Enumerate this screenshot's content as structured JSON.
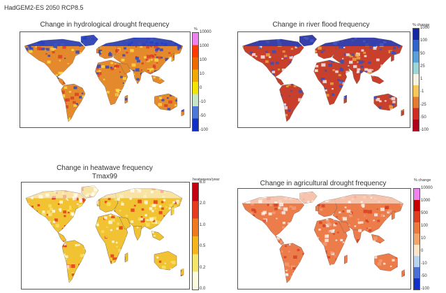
{
  "figure": {
    "suptitle": "HadGEM2-ES 2050 RCP8.5"
  },
  "panels": [
    {
      "id": "hydro",
      "title": "Change in hydrological drought frequency",
      "subtitle": "",
      "unit": "%",
      "ticks": [
        "10000",
        "1000",
        "100",
        "10",
        "0",
        "-10",
        "-50",
        "-100"
      ],
      "colors": [
        "#ee82ee",
        "#ff3b00",
        "#f06a00",
        "#f2a900",
        "#f3e500",
        "#c6e6c8",
        "#4e79d8",
        "#1030c8"
      ],
      "land": "#e58a2c",
      "accent": [
        "#d9342a",
        "#ffe24a",
        "#1a3fd0"
      ]
    },
    {
      "id": "flood",
      "title": "Change in river flood frequency",
      "subtitle": "",
      "unit": "% change",
      "ticks": [
        "1000",
        "100",
        "50",
        "25",
        "1",
        "-1",
        "-25",
        "-50",
        "-100"
      ],
      "colors": [
        "#1428a6",
        "#2e64c9",
        "#5aa0d8",
        "#9bd5d8",
        "#f6f4e0",
        "#f6c85a",
        "#e47b31",
        "#d02c24",
        "#b0001a"
      ],
      "land": "#c8402c",
      "accent": [
        "#2a50c8",
        "#f0b040",
        "#ffffff"
      ]
    },
    {
      "id": "heat",
      "title": "Change in heatwave frequency",
      "subtitle": "Tmax99",
      "unit": "heatwaves/year",
      "ticks": [
        "6.0",
        "2.0",
        "1.0",
        "0.5",
        "0.2",
        "0.0"
      ],
      "colors": [
        "#c40012",
        "#e83a1e",
        "#f27a1e",
        "#f7b51c",
        "#f5e56a",
        "#fbfbe0"
      ],
      "land": "#f1c232",
      "accent": [
        "#e02a14",
        "#f7e46c",
        "#ffffff"
      ]
    },
    {
      "id": "agri",
      "title": "Change in agricultural drought frequency",
      "subtitle": "",
      "unit": "% change",
      "ticks": [
        "10000",
        "1000",
        "500",
        "100",
        "10",
        "0",
        "-10",
        "-50",
        "-100"
      ],
      "colors": [
        "#ee82ee",
        "#c80000",
        "#e23c1e",
        "#ee7a3a",
        "#f3a56a",
        "#fde6c8",
        "#b6d4f0",
        "#4a6fd8",
        "#1030c8"
      ],
      "land": "#ec7c4a",
      "accent": [
        "#d23a20",
        "#ffffff",
        "#f2a07a"
      ]
    }
  ]
}
